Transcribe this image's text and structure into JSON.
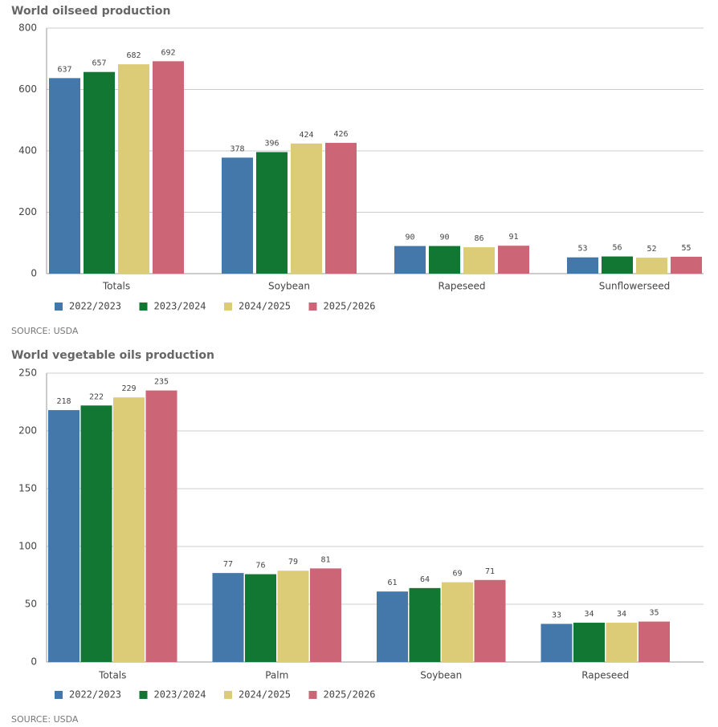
{
  "chart_data": [
    {
      "type": "bar",
      "title": "World oilseed production",
      "source": "SOURCE: USDA",
      "categories": [
        "Totals",
        "Soybean",
        "Rapeseed",
        "Sunflowerseed"
      ],
      "series": [
        {
          "name": "2022/2023",
          "color": "#4477aa",
          "values": [
            637,
            378,
            90,
            53
          ]
        },
        {
          "name": "2023/2024",
          "color": "#117733",
          "values": [
            657,
            396,
            90,
            56
          ]
        },
        {
          "name": "2024/2025",
          "color": "#ddcc77",
          "values": [
            682,
            424,
            86,
            52
          ]
        },
        {
          "name": "2025/2026",
          "color": "#cc6677",
          "values": [
            692,
            426,
            91,
            55
          ]
        }
      ],
      "ylim": [
        0,
        800
      ],
      "yticks": [
        0,
        200,
        400,
        600,
        800
      ],
      "grid": true
    },
    {
      "type": "bar",
      "title": "World vegetable oils production",
      "source": "SOURCE: USDA",
      "categories": [
        "Totals",
        "Palm",
        "Soybean",
        "Rapeseed"
      ],
      "series": [
        {
          "name": "2022/2023",
          "color": "#4477aa",
          "values": [
            218,
            77,
            61,
            33
          ]
        },
        {
          "name": "2023/2024",
          "color": "#117733",
          "values": [
            222,
            76,
            64,
            34
          ]
        },
        {
          "name": "2024/2025",
          "color": "#ddcc77",
          "values": [
            229,
            79,
            69,
            34
          ]
        },
        {
          "name": "2025/2026",
          "color": "#cc6677",
          "values": [
            235,
            81,
            71,
            35
          ]
        }
      ],
      "ylim": [
        0,
        250
      ],
      "yticks": [
        0,
        50,
        100,
        150,
        200,
        250
      ],
      "grid": true
    }
  ]
}
